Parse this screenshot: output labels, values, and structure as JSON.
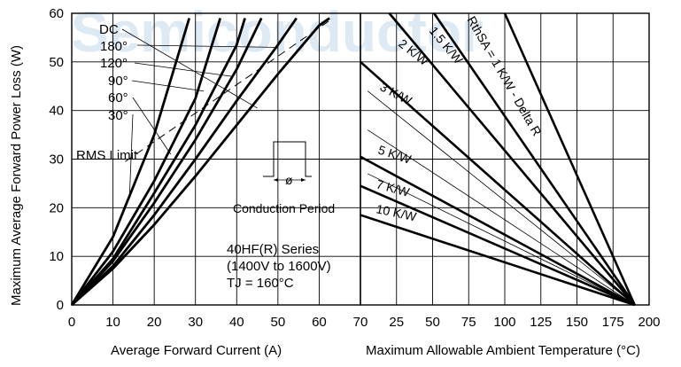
{
  "chart_data": [
    {
      "type": "line",
      "xlabel": "Average Forward Current (A)",
      "ylabel": "Maximum Average Forward Power Loss (W)",
      "xlim": [
        0,
        70
      ],
      "ylim": [
        0,
        60
      ],
      "xticks": [
        "0",
        "10",
        "20",
        "30",
        "40",
        "50",
        "60",
        "70"
      ],
      "yticks": [
        "0",
        "10",
        "20",
        "30",
        "40",
        "50",
        "60"
      ],
      "grid": true,
      "series": [
        {
          "name": "DC",
          "x": [
            0,
            10,
            20,
            30,
            40,
            50,
            60,
            62.5
          ],
          "y": [
            0,
            7.5,
            16.5,
            26.5,
            37.0,
            47.5,
            57.5,
            59.0
          ]
        },
        {
          "name": "180°",
          "x": [
            0,
            10,
            20,
            30,
            40,
            50,
            54.5
          ],
          "y": [
            0,
            8.0,
            18.5,
            30.0,
            42.0,
            53.5,
            59.0
          ]
        },
        {
          "name": "120°",
          "x": [
            0,
            10,
            20,
            30,
            40,
            46
          ],
          "y": [
            0,
            9.0,
            21.0,
            34.0,
            48.5,
            59.0
          ]
        },
        {
          "name": "90°",
          "x": [
            0,
            10,
            20,
            30,
            40,
            42
          ],
          "y": [
            0,
            9.5,
            23.0,
            37.0,
            53.5,
            59.0
          ]
        },
        {
          "name": "60°",
          "x": [
            0,
            10,
            20,
            30,
            36
          ],
          "y": [
            0,
            11.0,
            25.5,
            42.5,
            59.0
          ]
        },
        {
          "name": "30°",
          "x": [
            0,
            10,
            20,
            28.5
          ],
          "y": [
            0,
            14.0,
            35.0,
            59.0
          ]
        }
      ],
      "rms_limit": {
        "name": "RMS Limit",
        "x": [
          13,
          62.5
        ],
        "y": [
          29.5,
          58.5
        ]
      },
      "annotations": {
        "curve_labels": [
          "DC",
          "180°",
          "120°",
          "90°",
          "60°",
          "30°"
        ],
        "rms_limit": "RMS Limit",
        "conduction_period": "Conduction Period",
        "phi": "ø",
        "series_line": "40HF(R) Series",
        "voltage_line": "(1400V to 1600V)",
        "tj_line": "TJ = 160°C"
      }
    },
    {
      "type": "line",
      "xlabel": "Maximum Allowable Ambient Temperature (°C)",
      "ylabel": "",
      "xlim": [
        0,
        200
      ],
      "ylim": [
        0,
        60
      ],
      "xticks": [
        "25",
        "50",
        "75",
        "100",
        "125",
        "150",
        "175",
        "200"
      ],
      "grid": true,
      "converge": {
        "x": 190,
        "y": 0
      },
      "series": [
        {
          "name": "1 K/W",
          "x": [
            100,
            190
          ],
          "y": [
            60,
            0
          ]
        },
        {
          "name": "1.5 K/W",
          "x": [
            51,
            190
          ],
          "y": [
            60,
            0
          ]
        },
        {
          "name": "2 K/W",
          "x": [
            20,
            190
          ],
          "y": [
            60,
            0
          ]
        },
        {
          "name": "3 K/W",
          "x": [
            0,
            190
          ],
          "y": [
            50,
            0
          ]
        },
        {
          "name": "5 K/W",
          "x": [
            0,
            190
          ],
          "y": [
            30.5,
            0
          ]
        },
        {
          "name": "7 K/W",
          "x": [
            0,
            190
          ],
          "y": [
            24.5,
            0
          ]
        },
        {
          "name": "10 K/W",
          "x": [
            0,
            190
          ],
          "y": [
            18.5,
            0
          ]
        }
      ],
      "labels": {
        "r1": "RthSA = 1 K/W - Delta R",
        "r15": "1.5 K/W",
        "r2": "2 K/W",
        "r3": "3 K/W",
        "r5": "5 K/W",
        "r7": "7 K/W",
        "r10": "10 K/W"
      }
    }
  ],
  "watermark": "Semiconductor"
}
